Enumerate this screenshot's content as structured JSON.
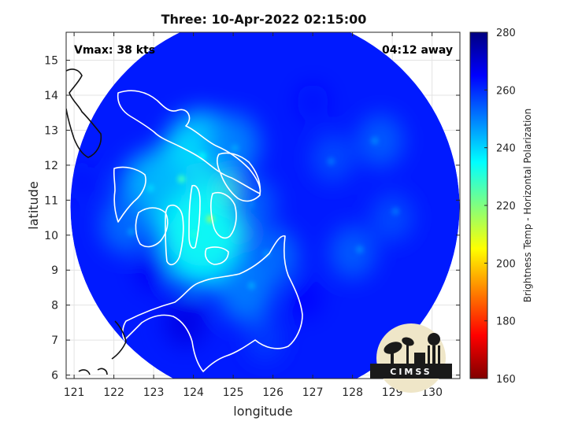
{
  "chart_data": {
    "type": "heatmap",
    "title": "Three: 10-Apr-2022 02:15:00",
    "xlabel": "longitude",
    "ylabel": "latitude",
    "xlim": [
      120.8,
      130.7
    ],
    "ylim": [
      5.9,
      15.8
    ],
    "xticks": [
      121,
      122,
      123,
      124,
      125,
      126,
      127,
      128,
      129,
      130
    ],
    "yticks": [
      6,
      7,
      8,
      9,
      10,
      11,
      12,
      13,
      14,
      15
    ],
    "grid": true,
    "colorbar": {
      "label": "Brightness Temp - Horizontal Polarization",
      "range": [
        160,
        280
      ],
      "ticks": [
        160,
        180,
        200,
        220,
        240,
        260,
        280
      ],
      "colormap": "jet"
    },
    "annotations": {
      "vmax": "Vmax: 38 kts",
      "offset": "04:12 away"
    },
    "swath": {
      "shape": "circle",
      "center_lon": 125.8,
      "center_lat": 10.8,
      "background_value": 262,
      "features": [
        {
          "lon": 123.9,
          "lat": 11.4,
          "value": 232
        },
        {
          "lon": 124.3,
          "lat": 10.6,
          "value": 222
        },
        {
          "lon": 124.2,
          "lat": 12.3,
          "value": 240
        },
        {
          "lon": 123.0,
          "lat": 11.3,
          "value": 244
        },
        {
          "lon": 124.2,
          "lat": 9.9,
          "value": 236
        },
        {
          "lon": 122.3,
          "lat": 10.3,
          "value": 252
        },
        {
          "lon": 125.0,
          "lat": 12.6,
          "value": 250
        },
        {
          "lon": 125.5,
          "lat": 10.9,
          "value": 254
        },
        {
          "lon": 126.0,
          "lat": 9.4,
          "value": 252
        },
        {
          "lon": 125.3,
          "lat": 8.4,
          "value": 250
        },
        {
          "lon": 125.8,
          "lat": 7.0,
          "value": 258
        },
        {
          "lon": 127.5,
          "lat": 12.2,
          "value": 256
        },
        {
          "lon": 128.7,
          "lat": 12.7,
          "value": 254
        },
        {
          "lon": 128.0,
          "lat": 9.5,
          "value": 254
        },
        {
          "lon": 129.0,
          "lat": 10.5,
          "value": 256
        },
        {
          "lon": 123.8,
          "lat": 7.5,
          "value": 268
        },
        {
          "lon": 123.0,
          "lat": 9.0,
          "value": 266
        },
        {
          "lon": 126.8,
          "lat": 8.2,
          "value": 265
        },
        {
          "lon": 127.0,
          "lat": 13.8,
          "value": 264
        },
        {
          "lon": 121.2,
          "lat": 11.5,
          "value": 262
        }
      ]
    }
  },
  "logo": {
    "text": "CIMSS",
    "icon": "cimss-logo-icon"
  }
}
